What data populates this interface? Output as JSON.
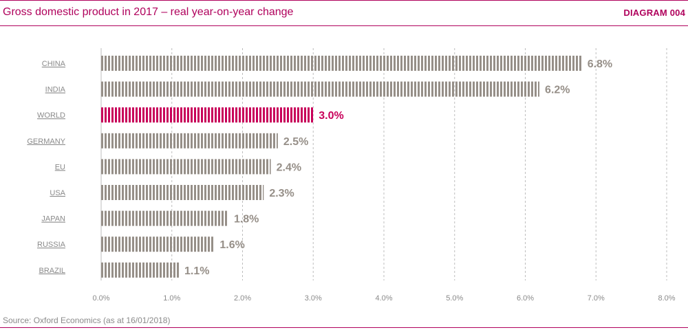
{
  "header": {
    "title": "Gross domestic product in 2017 – real year-on-year change",
    "diagram_label": "DIAGRAM 004"
  },
  "footer": {
    "source": "Source: Oxford Economics (as at 16/01/2018)"
  },
  "colors": {
    "accent": "#b0005c",
    "bar": "#968f88",
    "highlight": "#c8005a",
    "grid": "#bdbdbd",
    "label": "#8a8a8a"
  },
  "chart_data": {
    "type": "bar",
    "orientation": "horizontal",
    "title": "Gross domestic product in 2017 – real year-on-year change",
    "categories": [
      "CHINA",
      "INDIA",
      "WORLD",
      "GERMANY",
      "EU",
      "USA",
      "JAPAN",
      "RUSSIA",
      "BRAZIL"
    ],
    "values": [
      6.8,
      6.2,
      3.0,
      2.5,
      2.4,
      2.3,
      1.8,
      1.6,
      1.1
    ],
    "value_labels": [
      "6.8%",
      "6.2%",
      "3.0%",
      "2.5%",
      "2.4%",
      "2.3%",
      "1.8%",
      "1.6%",
      "1.1%"
    ],
    "highlight_category": "WORLD",
    "xlim": [
      0,
      8
    ],
    "x_ticks": [
      0,
      1,
      2,
      3,
      4,
      5,
      6,
      7,
      8
    ],
    "x_tick_labels": [
      "0.0%",
      "1.0%",
      "2.0%",
      "3.0%",
      "4.0%",
      "5.0%",
      "6.0%",
      "7.0%",
      "8.0%"
    ],
    "grid": true,
    "legend": "none"
  }
}
